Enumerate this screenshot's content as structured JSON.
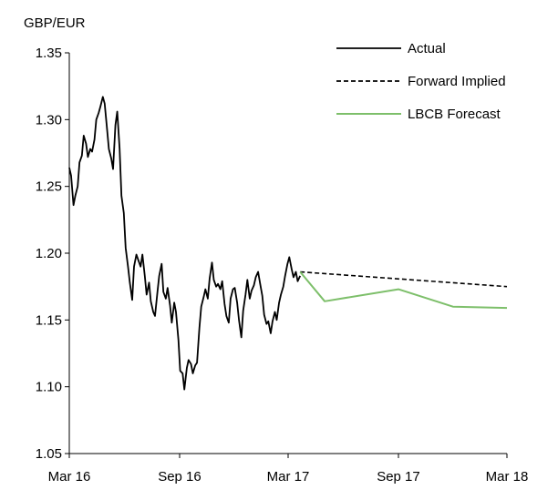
{
  "chart_data": {
    "type": "line",
    "ylabel": "GBP/EUR",
    "ylim": [
      1.05,
      1.35
    ],
    "yticks": [
      "1.05",
      "1.10",
      "1.15",
      "1.20",
      "1.25",
      "1.30",
      "1.35"
    ],
    "xlim": [
      "2016-03-01",
      "2018-03-01"
    ],
    "xticks": [
      {
        "label": "Mar 16",
        "date": "2016-03-01"
      },
      {
        "label": "Sep 16",
        "date": "2016-09-01"
      },
      {
        "label": "Mar 17",
        "date": "2017-03-01"
      },
      {
        "label": "Sep 17",
        "date": "2017-09-01"
      },
      {
        "label": "Mar 18",
        "date": "2018-03-01"
      }
    ],
    "grid": false,
    "legend_position": "top-right",
    "series": [
      {
        "name": "Actual",
        "style": "solid",
        "color": "#000000",
        "points": [
          [
            "2016-03-01",
            1.264
          ],
          [
            "2016-03-04",
            1.258
          ],
          [
            "2016-03-08",
            1.236
          ],
          [
            "2016-03-11",
            1.243
          ],
          [
            "2016-03-15",
            1.25
          ],
          [
            "2016-03-18",
            1.268
          ],
          [
            "2016-03-22",
            1.273
          ],
          [
            "2016-03-25",
            1.288
          ],
          [
            "2016-03-29",
            1.282
          ],
          [
            "2016-04-01",
            1.272
          ],
          [
            "2016-04-05",
            1.278
          ],
          [
            "2016-04-08",
            1.276
          ],
          [
            "2016-04-12",
            1.285
          ],
          [
            "2016-04-15",
            1.3
          ],
          [
            "2016-04-19",
            1.305
          ],
          [
            "2016-04-22",
            1.31
          ],
          [
            "2016-04-26",
            1.317
          ],
          [
            "2016-04-29",
            1.312
          ],
          [
            "2016-05-03",
            1.293
          ],
          [
            "2016-05-06",
            1.278
          ],
          [
            "2016-05-10",
            1.271
          ],
          [
            "2016-05-13",
            1.263
          ],
          [
            "2016-05-17",
            1.296
          ],
          [
            "2016-05-20",
            1.306
          ],
          [
            "2016-05-24",
            1.278
          ],
          [
            "2016-05-27",
            1.243
          ],
          [
            "2016-05-31",
            1.23
          ],
          [
            "2016-06-03",
            1.204
          ],
          [
            "2016-06-07",
            1.19
          ],
          [
            "2016-06-10",
            1.178
          ],
          [
            "2016-06-14",
            1.165
          ],
          [
            "2016-06-17",
            1.19
          ],
          [
            "2016-06-21",
            1.199
          ],
          [
            "2016-06-24",
            1.195
          ],
          [
            "2016-06-28",
            1.19
          ],
          [
            "2016-07-01",
            1.199
          ],
          [
            "2016-07-05",
            1.183
          ],
          [
            "2016-07-08",
            1.169
          ],
          [
            "2016-07-12",
            1.178
          ],
          [
            "2016-07-15",
            1.164
          ],
          [
            "2016-07-19",
            1.156
          ],
          [
            "2016-07-22",
            1.153
          ],
          [
            "2016-07-26",
            1.171
          ],
          [
            "2016-07-29",
            1.183
          ],
          [
            "2016-08-02",
            1.192
          ],
          [
            "2016-08-05",
            1.171
          ],
          [
            "2016-08-09",
            1.166
          ],
          [
            "2016-08-12",
            1.174
          ],
          [
            "2016-08-16",
            1.161
          ],
          [
            "2016-08-19",
            1.148
          ],
          [
            "2016-08-23",
            1.163
          ],
          [
            "2016-08-26",
            1.156
          ],
          [
            "2016-08-30",
            1.135
          ],
          [
            "2016-09-02",
            1.112
          ],
          [
            "2016-09-06",
            1.11
          ],
          [
            "2016-09-09",
            1.098
          ],
          [
            "2016-09-13",
            1.114
          ],
          [
            "2016-09-16",
            1.12
          ],
          [
            "2016-09-20",
            1.117
          ],
          [
            "2016-09-23",
            1.11
          ],
          [
            "2016-09-27",
            1.116
          ],
          [
            "2016-09-30",
            1.118
          ],
          [
            "2016-10-04",
            1.144
          ],
          [
            "2016-10-07",
            1.16
          ],
          [
            "2016-10-11",
            1.167
          ],
          [
            "2016-10-14",
            1.173
          ],
          [
            "2016-10-18",
            1.166
          ],
          [
            "2016-10-21",
            1.181
          ],
          [
            "2016-10-25",
            1.193
          ],
          [
            "2016-10-28",
            1.18
          ],
          [
            "2016-11-01",
            1.175
          ],
          [
            "2016-11-04",
            1.177
          ],
          [
            "2016-11-08",
            1.173
          ],
          [
            "2016-11-11",
            1.179
          ],
          [
            "2016-11-15",
            1.162
          ],
          [
            "2016-11-18",
            1.153
          ],
          [
            "2016-11-22",
            1.148
          ],
          [
            "2016-11-25",
            1.166
          ],
          [
            "2016-11-29",
            1.173
          ],
          [
            "2016-12-02",
            1.174
          ],
          [
            "2016-12-06",
            1.163
          ],
          [
            "2016-12-09",
            1.15
          ],
          [
            "2016-12-13",
            1.137
          ],
          [
            "2016-12-16",
            1.157
          ],
          [
            "2016-12-20",
            1.169
          ],
          [
            "2016-12-23",
            1.18
          ],
          [
            "2016-12-27",
            1.166
          ],
          [
            "2016-12-30",
            1.172
          ],
          [
            "2017-01-03",
            1.176
          ],
          [
            "2017-01-06",
            1.182
          ],
          [
            "2017-01-10",
            1.186
          ],
          [
            "2017-01-13",
            1.178
          ],
          [
            "2017-01-17",
            1.168
          ],
          [
            "2017-01-20",
            1.154
          ],
          [
            "2017-01-24",
            1.147
          ],
          [
            "2017-01-27",
            1.149
          ],
          [
            "2017-01-31",
            1.14
          ],
          [
            "2017-02-03",
            1.149
          ],
          [
            "2017-02-07",
            1.156
          ],
          [
            "2017-02-10",
            1.15
          ],
          [
            "2017-02-14",
            1.163
          ],
          [
            "2017-02-17",
            1.169
          ],
          [
            "2017-02-21",
            1.175
          ],
          [
            "2017-02-24",
            1.183
          ],
          [
            "2017-02-28",
            1.192
          ],
          [
            "2017-03-03",
            1.197
          ],
          [
            "2017-03-07",
            1.188
          ],
          [
            "2017-03-10",
            1.182
          ],
          [
            "2017-03-14",
            1.186
          ],
          [
            "2017-03-17",
            1.179
          ],
          [
            "2017-03-21",
            1.183
          ]
        ]
      },
      {
        "name": "Forward Implied",
        "style": "dashed",
        "color": "#000000",
        "points": [
          [
            "2017-03-21",
            1.186
          ],
          [
            "2018-03-01",
            1.175
          ]
        ]
      },
      {
        "name": "LBCB Forecast",
        "style": "solid",
        "color": "#7dbf6a",
        "points": [
          [
            "2017-03-21",
            1.186
          ],
          [
            "2017-05-01",
            1.164
          ],
          [
            "2017-09-01",
            1.173
          ],
          [
            "2017-12-01",
            1.16
          ],
          [
            "2018-03-01",
            1.159
          ]
        ]
      }
    ]
  }
}
